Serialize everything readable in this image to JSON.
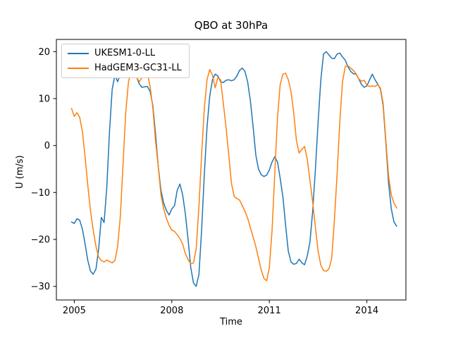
{
  "figure": {
    "title": "QBO at 30hPa"
  },
  "axes": {
    "xlabel": "Time",
    "ylabel": "U (m/s)",
    "xtick_labels": [
      "2005",
      "2008",
      "2011",
      "2014"
    ],
    "ytick_labels": [
      "20",
      "10",
      "0",
      "−10",
      "−20",
      "−30"
    ]
  },
  "legend": {
    "items": [
      {
        "label": "UKESM1-0-LL",
        "color": "#1f77b4"
      },
      {
        "label": "HadGEM3-GC31-LL",
        "color": "#ff7f0e"
      }
    ]
  },
  "chart_data": {
    "type": "line",
    "title": "QBO at 30hPa",
    "xlabel": "Time",
    "ylabel": "U (m/s)",
    "grid": false,
    "legend_position": "upper left",
    "xlim": [
      2004.45,
      2015.2
    ],
    "ylim": [
      -32.9,
      22.6
    ],
    "xticks": [
      2005,
      2008,
      2011,
      2014
    ],
    "yticks": [
      20,
      10,
      0,
      -10,
      -20,
      -30
    ],
    "x_start_year": 2004.917,
    "x_step_years": 0.0833333,
    "series": [
      {
        "name": "UKESM1-0-LL",
        "color": "#1f77b4",
        "values": [
          -16.3,
          -16.6,
          -15.6,
          -15.9,
          -17.8,
          -21,
          -24.5,
          -26.8,
          -27.4,
          -26.3,
          -22,
          -15.3,
          -16.4,
          -9,
          3,
          12,
          15,
          13.6,
          15.2,
          15.3,
          15.1,
          15.3,
          15.5,
          15.2,
          14.6,
          13.1,
          12.4,
          12.5,
          12.6,
          11.5,
          8.5,
          2.5,
          -4.5,
          -9.5,
          -12.3,
          -13.8,
          -14.8,
          -13.5,
          -12.8,
          -9.5,
          -8.2,
          -10.5,
          -14.5,
          -20,
          -26,
          -29.3,
          -30,
          -27.5,
          -18,
          -6,
          4,
          10.5,
          14,
          15.2,
          14.8,
          13.6,
          13.4,
          13.9,
          14,
          13.8,
          14,
          14.8,
          16,
          16.5,
          15.8,
          13.5,
          9.5,
          4,
          -2,
          -5,
          -6.2,
          -6.6,
          -6.3,
          -5.2,
          -3.5,
          -2.4,
          -3.5,
          -7,
          -11,
          -17,
          -22.5,
          -24.8,
          -25.3,
          -25.1,
          -24.2,
          -25,
          -25.4,
          -23.5,
          -20.5,
          -14,
          -5,
          5,
          14,
          19.5,
          20,
          19.3,
          18.6,
          18.5,
          19.5,
          19.7,
          18.9,
          18.2,
          16.8,
          15.8,
          15.3,
          15.2,
          14.2,
          13,
          12.4,
          12.7,
          14,
          15.2,
          14,
          13.1,
          12,
          8.5,
          0.5,
          -8,
          -13.5,
          -16.3,
          -17.2
        ]
      },
      {
        "name": "HadGEM3-GC31-LL",
        "color": "#ff7f0e",
        "values": [
          7.9,
          6.2,
          7,
          6,
          3,
          -2.5,
          -8.5,
          -14,
          -18,
          -21.5,
          -23.8,
          -24.5,
          -24.8,
          -24.4,
          -24.7,
          -25,
          -24.5,
          -21.5,
          -15,
          -4,
          7,
          13.5,
          15.9,
          15.7,
          14.5,
          13.6,
          14.5,
          15.7,
          15.3,
          12.5,
          8,
          1,
          -4.5,
          -10.5,
          -13.5,
          -15.5,
          -17,
          -18,
          -18.3,
          -19,
          -19.8,
          -21,
          -23,
          -24.3,
          -25.2,
          -25,
          -22,
          -13,
          -2,
          8,
          14,
          16.2,
          15,
          12.3,
          14.5,
          14,
          9,
          4,
          -2,
          -8,
          -10.8,
          -11.3,
          -11.6,
          -12.8,
          -14,
          -15.5,
          -17.5,
          -19.5,
          -21.5,
          -24,
          -26.5,
          -28.3,
          -28.8,
          -26,
          -18,
          -6,
          6,
          13,
          15.2,
          15.4,
          14,
          11.5,
          7,
          1,
          -1.6,
          -0.8,
          -0.2,
          -3,
          -7.5,
          -12,
          -17.5,
          -22.5,
          -25.5,
          -26.6,
          -26.8,
          -26.3,
          -24,
          -16,
          -6,
          5,
          13.5,
          16.8,
          17,
          16.5,
          16,
          15.3,
          14.2,
          13.7,
          13.9,
          12.8,
          12.6,
          12.7,
          12.6,
          13,
          12.2,
          9,
          1,
          -6.5,
          -10.5,
          -12.3,
          -13.3
        ]
      }
    ]
  }
}
